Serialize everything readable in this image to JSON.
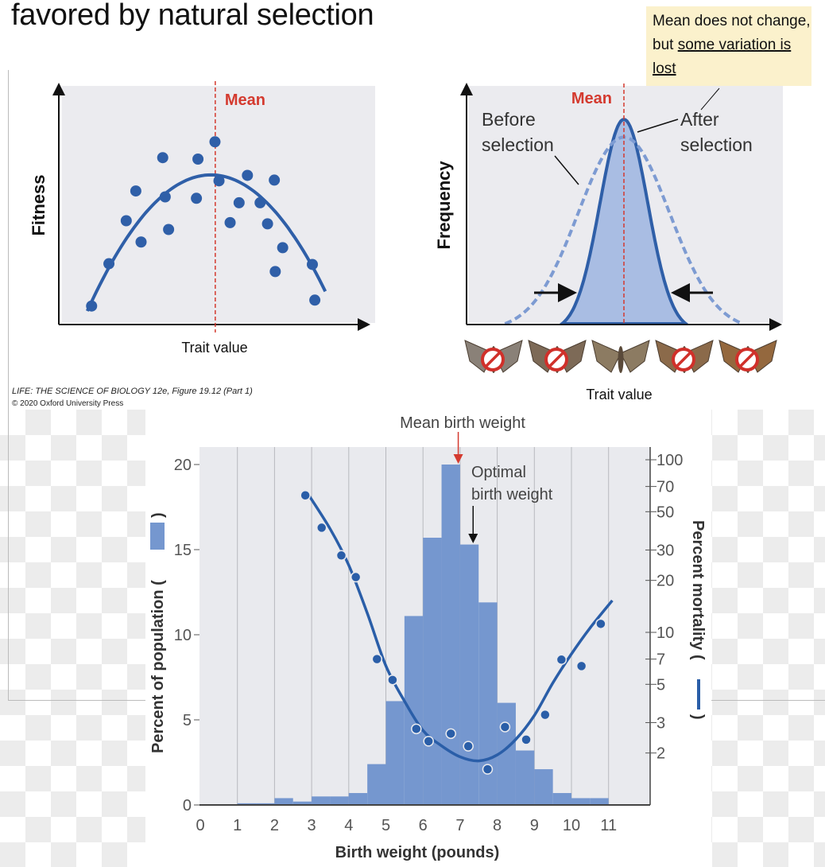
{
  "slide": {
    "title": "favored by natural selection",
    "note": {
      "text": "Mean does not change, but ",
      "underlined": "some variation is lost",
      "background": "#fbf1cc"
    },
    "credit": {
      "line1": "LIFE: THE SCIENCE OF BIOLOGY 12e, Figure 19.12 (Part 1)",
      "line2": "© 2020 Oxford University Press"
    }
  },
  "colors": {
    "series_blue": "#2f5fa8",
    "fill_blue": "#7597cf",
    "after_fill": "#a9bde3",
    "mean_red": "#d43a2f",
    "plot_bg": "#ebebef"
  },
  "chart_data": [
    {
      "type": "scatter",
      "xlabel": "Trait value",
      "ylabel": "Fitness",
      "annotation": "Mean",
      "mean_trait": 5.04,
      "points": [
        [
          1.04,
          0.75
        ],
        [
          1.6,
          2.54
        ],
        [
          2.16,
          4.36
        ],
        [
          2.47,
          5.62
        ],
        [
          2.64,
          3.46
        ],
        [
          3.34,
          7.03
        ],
        [
          3.42,
          5.37
        ],
        [
          3.53,
          3.99
        ],
        [
          4.43,
          5.31
        ],
        [
          4.48,
          6.97
        ],
        [
          5.03,
          7.7
        ],
        [
          5.16,
          6.05
        ],
        [
          5.52,
          4.28
        ],
        [
          5.81,
          5.12
        ],
        [
          6.08,
          6.28
        ],
        [
          6.49,
          5.12
        ],
        [
          6.73,
          4.23
        ],
        [
          6.95,
          6.08
        ],
        [
          6.98,
          2.21
        ],
        [
          7.22,
          3.22
        ],
        [
          8.18,
          2.51
        ],
        [
          8.26,
          1.0
        ]
      ],
      "fit": {
        "shape": "parabola",
        "peak_trait": 4.9,
        "peak_fitness": 6.3,
        "curvature": 0.36,
        "x_range": [
          0.9,
          8.64
        ]
      }
    },
    {
      "type": "line",
      "xlabel": "Trait value",
      "ylabel": "Frequency",
      "annotation": "Mean",
      "mean_trait": 5.09,
      "series": [
        {
          "name": "Before selection",
          "style": "dashed",
          "sd": 1.48,
          "peak": 7.9
        },
        {
          "name": "After selection",
          "style": "solid-filled",
          "sd": 0.77,
          "peak": 8.65
        }
      ],
      "moths": [
        {
          "icon": "moth-icon",
          "prohibited": true
        },
        {
          "icon": "moth-icon",
          "prohibited": true
        },
        {
          "icon": "moth-icon",
          "prohibited": false
        },
        {
          "icon": "moth-icon",
          "prohibited": true
        },
        {
          "icon": "moth-icon",
          "prohibited": true
        }
      ]
    },
    {
      "type": "bar",
      "xlabel": "Birth weight (pounds)",
      "ylabel": "Percent of population (",
      "ylabel_close": ")",
      "y2label": "Percent mortality (",
      "y2label_close": ")",
      "xlim": [
        0,
        11
      ],
      "ylim": [
        0,
        21
      ],
      "xticks": [
        "0",
        "1",
        "2",
        "3",
        "4",
        "5",
        "6",
        "7",
        "8",
        "9",
        "10",
        "11"
      ],
      "yticks": [
        0,
        5,
        10,
        15,
        20
      ],
      "y2_scale": "log",
      "y2ticks": [
        2,
        3,
        5,
        7,
        10,
        20,
        30,
        50,
        70,
        100
      ],
      "grid": "vertical",
      "annotations": {
        "mean": "Mean birth weight",
        "mean_x": 6.95,
        "optimal_line1": "Optimal",
        "optimal_line2": "birth weight",
        "optimal_x": 7.35
      },
      "bins": [
        [
          1,
          1.5
        ],
        [
          1.5,
          2
        ],
        [
          2,
          2.5
        ],
        [
          2.5,
          3
        ],
        [
          3,
          3.5
        ],
        [
          3.5,
          4
        ],
        [
          4,
          4.5
        ],
        [
          4.5,
          5
        ],
        [
          5,
          5.5
        ],
        [
          5.5,
          6
        ],
        [
          6,
          6.5
        ],
        [
          6.5,
          7
        ],
        [
          7,
          7.5
        ],
        [
          7.5,
          8
        ],
        [
          8,
          8.5
        ],
        [
          8.5,
          9
        ],
        [
          9,
          9.5
        ],
        [
          9.5,
          10
        ],
        [
          10,
          10.5
        ],
        [
          10.5,
          11
        ]
      ],
      "values": [
        0.1,
        0.1,
        0.4,
        0.2,
        0.5,
        0.5,
        0.7,
        2.4,
        6.1,
        11.1,
        15.7,
        20.0,
        15.3,
        11.9,
        6.0,
        3.2,
        2.1,
        0.7,
        0.4,
        0.4
      ],
      "mortality_points": [
        [
          2.83,
          62.2
        ],
        [
          3.27,
          40.4
        ],
        [
          3.8,
          27.9
        ],
        [
          4.19,
          20.9
        ],
        [
          4.76,
          7.0
        ],
        [
          5.18,
          5.3
        ],
        [
          5.82,
          2.76
        ],
        [
          6.15,
          2.34
        ],
        [
          6.75,
          2.59
        ],
        [
          7.22,
          2.19
        ],
        [
          7.74,
          1.61
        ],
        [
          8.21,
          2.83
        ],
        [
          8.78,
          2.39
        ],
        [
          9.29,
          3.33
        ],
        [
          9.73,
          6.95
        ],
        [
          10.27,
          6.38
        ],
        [
          10.79,
          11.2
        ]
      ],
      "mortality_curve": [
        [
          2.85,
          65.9
        ],
        [
          3.5,
          39.7
        ],
        [
          4,
          24.5
        ],
        [
          4.5,
          12.9
        ],
        [
          5,
          6.4
        ],
        [
          5.5,
          4.0
        ],
        [
          6,
          2.7
        ],
        [
          6.5,
          2.2
        ],
        [
          7,
          1.9
        ],
        [
          7.5,
          1.8
        ],
        [
          8,
          1.95
        ],
        [
          8.5,
          2.4
        ],
        [
          9,
          3.3
        ],
        [
          9.5,
          5.1
        ],
        [
          10,
          7.5
        ],
        [
          10.5,
          10.6
        ],
        [
          11.1,
          15.3
        ]
      ]
    }
  ]
}
